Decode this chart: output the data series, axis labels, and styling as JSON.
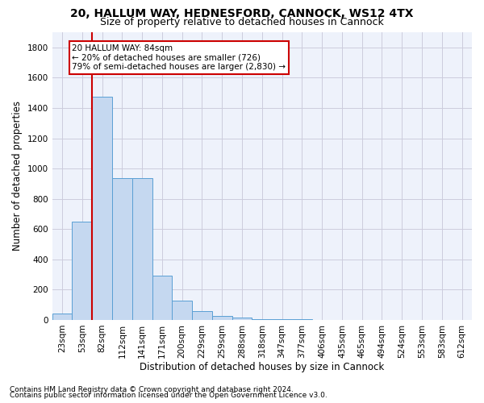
{
  "title_line1": "20, HALLUM WAY, HEDNESFORD, CANNOCK, WS12 4TX",
  "title_line2": "Size of property relative to detached houses in Cannock",
  "xlabel": "Distribution of detached houses by size in Cannock",
  "ylabel": "Number of detached properties",
  "categories": [
    "23sqm",
    "53sqm",
    "82sqm",
    "112sqm",
    "141sqm",
    "171sqm",
    "200sqm",
    "229sqm",
    "259sqm",
    "288sqm",
    "318sqm",
    "347sqm",
    "377sqm",
    "406sqm",
    "435sqm",
    "465sqm",
    "494sqm",
    "524sqm",
    "553sqm",
    "583sqm",
    "612sqm"
  ],
  "values": [
    40,
    650,
    1475,
    935,
    935,
    290,
    125,
    60,
    25,
    15,
    5,
    5,
    5,
    2,
    2,
    1,
    1,
    0,
    0,
    0,
    0
  ],
  "bar_color": "#c5d8f0",
  "bar_edge_color": "#5a9fd4",
  "vline_x_idx": 2,
  "vline_color": "#cc0000",
  "ylim": [
    0,
    1900
  ],
  "yticks": [
    0,
    200,
    400,
    600,
    800,
    1000,
    1200,
    1400,
    1600,
    1800
  ],
  "annotation_text": "20 HALLUM WAY: 84sqm\n← 20% of detached houses are smaller (726)\n79% of semi-detached houses are larger (2,830) →",
  "annotation_box_color": "#ffffff",
  "annotation_box_edge": "#cc0000",
  "footnote1": "Contains HM Land Registry data © Crown copyright and database right 2024.",
  "footnote2": "Contains public sector information licensed under the Open Government Licence v3.0.",
  "grid_color": "#ccccdd",
  "bg_color": "#eef2fb",
  "title_fontsize": 10,
  "subtitle_fontsize": 9,
  "tick_fontsize": 7.5,
  "label_fontsize": 8.5,
  "footnote_fontsize": 6.5
}
